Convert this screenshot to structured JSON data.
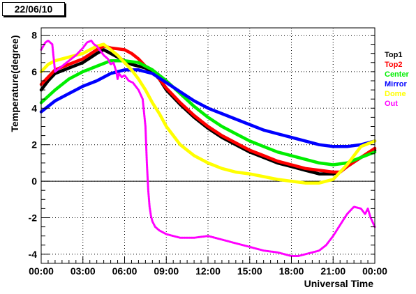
{
  "date_label": "22/06/10",
  "chart_data": {
    "type": "line",
    "title": "",
    "xlabel": "Universal Time",
    "ylabel": "Temperature(degree)",
    "xlim": [
      0,
      24
    ],
    "ylim": [
      -4.5,
      8.4
    ],
    "grid": true,
    "legend": "right",
    "x_ticks": [
      0,
      3,
      6,
      9,
      12,
      15,
      18,
      21,
      24
    ],
    "x_tick_labels": [
      "00:00",
      "03:00",
      "06:00",
      "09:00",
      "12:00",
      "15:00",
      "18:00",
      "21:00",
      "00:00"
    ],
    "y_ticks": [
      -4,
      -2,
      0,
      2,
      4,
      6,
      8
    ],
    "y_tick_labels": [
      "-4",
      "-2",
      "0",
      "2",
      "4",
      "6",
      "8"
    ],
    "series": [
      {
        "name": "Top1",
        "color": "#000000",
        "x": [
          0,
          0.5,
          1,
          2,
          3,
          4,
          4.5,
          5,
          6,
          6.5,
          7,
          7.5,
          8,
          8.5,
          9,
          10,
          11,
          12,
          13,
          14,
          15,
          16,
          17,
          18,
          19,
          20,
          21,
          21.5,
          22,
          23,
          24
        ],
        "y": [
          5.0,
          5.5,
          5.9,
          6.2,
          6.5,
          7.0,
          7.2,
          7.0,
          6.6,
          6.4,
          6.3,
          6.2,
          6.0,
          5.6,
          5.0,
          4.2,
          3.5,
          2.9,
          2.4,
          2.0,
          1.6,
          1.3,
          1.0,
          0.8,
          0.6,
          0.4,
          0.4,
          0.5,
          0.8,
          1.3,
          1.7
        ]
      },
      {
        "name": "Top2",
        "color": "#ff0000",
        "x": [
          0,
          0.5,
          1,
          2,
          3,
          4,
          4.5,
          5,
          6,
          6.5,
          7,
          7.5,
          8,
          8.5,
          9,
          10,
          11,
          12,
          13,
          14,
          15,
          16,
          17,
          18,
          19,
          20,
          21,
          21.5,
          22,
          23,
          24
        ],
        "y": [
          5.3,
          5.7,
          6.1,
          6.4,
          6.7,
          7.2,
          7.4,
          7.3,
          7.2,
          7.0,
          6.7,
          6.3,
          6.1,
          5.6,
          5.1,
          4.3,
          3.6,
          3.0,
          2.5,
          2.1,
          1.7,
          1.4,
          1.1,
          0.9,
          0.7,
          0.6,
          0.5,
          0.5,
          0.8,
          1.3,
          1.8
        ]
      },
      {
        "name": "Center",
        "color": "#00ee00",
        "x": [
          0,
          1,
          2,
          3,
          4,
          5,
          6,
          7,
          8,
          9,
          10,
          11,
          12,
          13,
          14,
          15,
          16,
          17,
          18,
          19,
          20,
          21,
          22,
          23,
          24
        ],
        "y": [
          4.3,
          5.0,
          5.6,
          6.0,
          6.3,
          6.6,
          6.6,
          6.5,
          6.1,
          5.5,
          4.8,
          4.1,
          3.5,
          3.0,
          2.6,
          2.2,
          1.9,
          1.6,
          1.4,
          1.2,
          1.0,
          0.9,
          1.0,
          1.3,
          1.6
        ]
      },
      {
        "name": "Mirror",
        "color": "#0000ff",
        "x": [
          0,
          1,
          2,
          3,
          4,
          5,
          6,
          7,
          8,
          9,
          10,
          11,
          12,
          13,
          14,
          15,
          16,
          17,
          18,
          19,
          20,
          21,
          22,
          23,
          24
        ],
        "y": [
          3.8,
          4.4,
          4.8,
          5.2,
          5.5,
          5.9,
          6.1,
          6.1,
          5.9,
          5.4,
          4.9,
          4.4,
          4.0,
          3.7,
          3.4,
          3.1,
          2.8,
          2.6,
          2.4,
          2.2,
          2.0,
          1.9,
          1.9,
          2.0,
          2.2
        ]
      },
      {
        "name": "Dome",
        "color": "#ffff00",
        "x": [
          0,
          0.5,
          1,
          2,
          3,
          3.5,
          4,
          4.5,
          5,
          5.5,
          6,
          6.5,
          7,
          7.5,
          8,
          8.5,
          9,
          10,
          11,
          12,
          13,
          14,
          15,
          16,
          17,
          18,
          19,
          20,
          21,
          22,
          23,
          24
        ],
        "y": [
          6.0,
          6.4,
          6.6,
          6.8,
          7.0,
          7.2,
          7.4,
          7.5,
          7.2,
          6.9,
          6.5,
          6.1,
          5.6,
          5.0,
          4.3,
          3.7,
          3.0,
          2.0,
          1.4,
          1.0,
          0.7,
          0.5,
          0.4,
          0.25,
          0.1,
          0.0,
          -0.1,
          -0.1,
          0.1,
          0.9,
          1.9,
          2.2
        ]
      },
      {
        "name": "Out",
        "color": "#ff00ff",
        "x": [
          0,
          0.3,
          0.5,
          0.8,
          1,
          1.5,
          2,
          2.5,
          3,
          3.3,
          3.6,
          3.8,
          4,
          4.2,
          4.5,
          4.8,
          5,
          5.2,
          5.4,
          5.5,
          5.6,
          5.8,
          6,
          6.3,
          6.6,
          7,
          7.3,
          7.5,
          7.6,
          7.7,
          7.8,
          7.9,
          8,
          8.2,
          8.5,
          9,
          9.5,
          10,
          11,
          12,
          12.5,
          13,
          14,
          15,
          16,
          17,
          18,
          18.5,
          19,
          19.5,
          20,
          20.5,
          21,
          21.5,
          22,
          22.5,
          23,
          23.3,
          23.5,
          23.7,
          24
        ],
        "y": [
          7.2,
          7.6,
          7.7,
          7.5,
          6.0,
          6.3,
          6.6,
          6.9,
          7.3,
          7.6,
          7.7,
          7.5,
          7.4,
          7.2,
          6.9,
          6.7,
          6.4,
          6.5,
          6.0,
          5.6,
          5.9,
          5.7,
          5.8,
          5.5,
          5.4,
          5.0,
          4.5,
          3.0,
          1.0,
          -0.5,
          -1.4,
          -1.9,
          -2.2,
          -2.5,
          -2.7,
          -2.9,
          -3.0,
          -3.1,
          -3.1,
          -3.0,
          -3.1,
          -3.2,
          -3.4,
          -3.6,
          -3.8,
          -3.9,
          -4.1,
          -4.1,
          -4.0,
          -3.9,
          -3.8,
          -3.5,
          -3.0,
          -2.4,
          -1.8,
          -1.4,
          -1.5,
          -1.8,
          -1.5,
          -2.0,
          -2.5
        ]
      }
    ]
  }
}
